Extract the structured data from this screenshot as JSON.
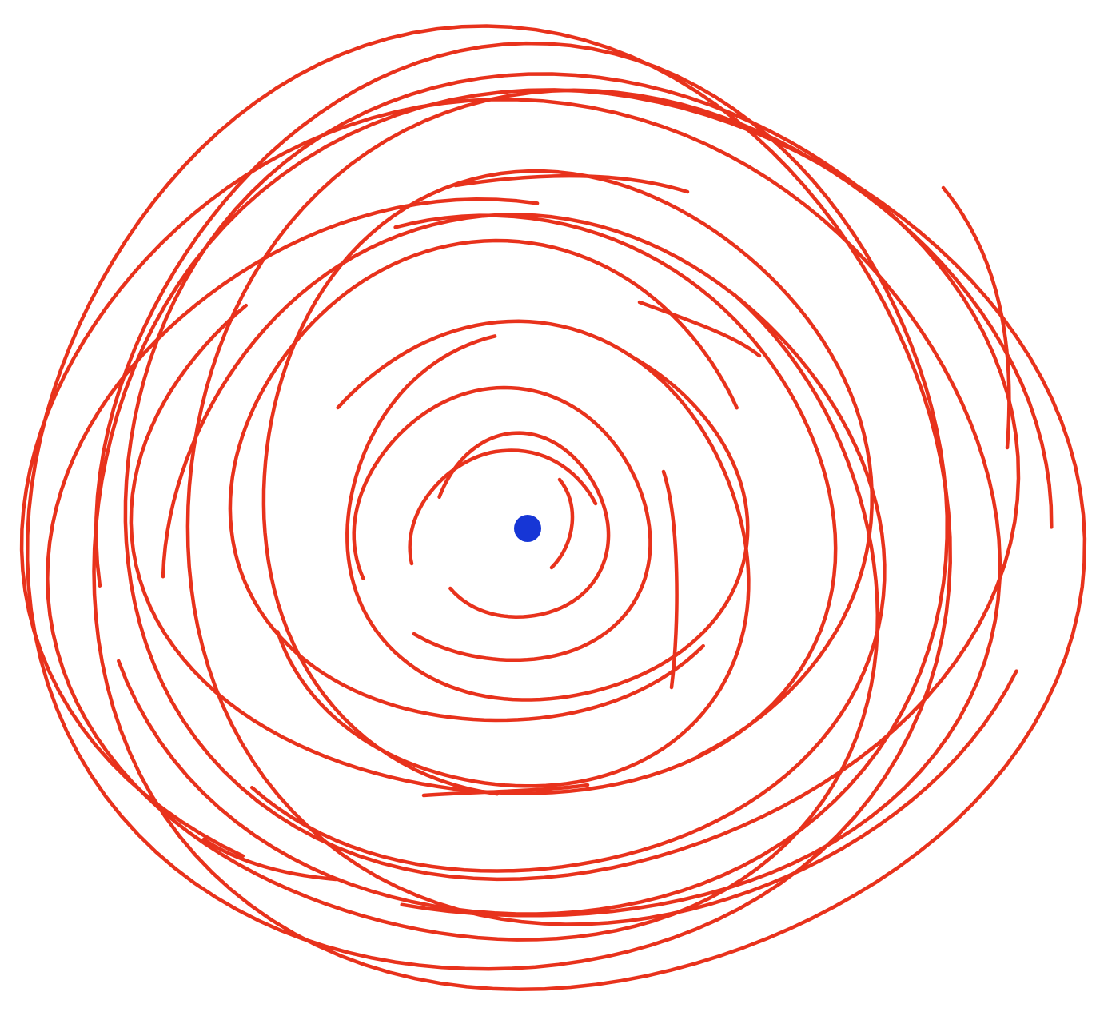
{
  "drawing": {
    "stroke_color": "#e8321c",
    "center_dot_color": "#1636d6",
    "background_color": "#ffffff"
  }
}
